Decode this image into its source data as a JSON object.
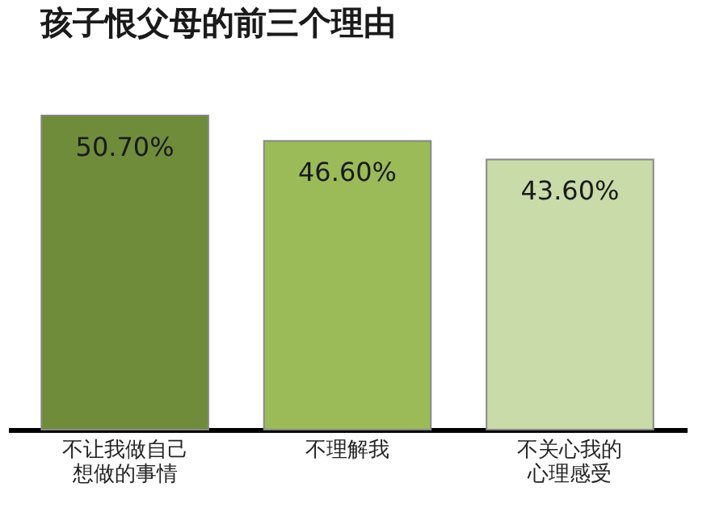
{
  "chart_data": {
    "type": "bar",
    "title": "孩子恨父母的前三个理由",
    "categories": [
      "不让我做自己想做的事情",
      "不理解我",
      "不关心我的心理感受"
    ],
    "values": [
      50.7,
      46.6,
      43.6
    ],
    "value_labels": [
      "50.70%",
      "46.60%",
      "43.60%"
    ],
    "colors": [
      "#6f8c3b",
      "#9bbb59",
      "#c9dba8"
    ],
    "grid": false
  }
}
